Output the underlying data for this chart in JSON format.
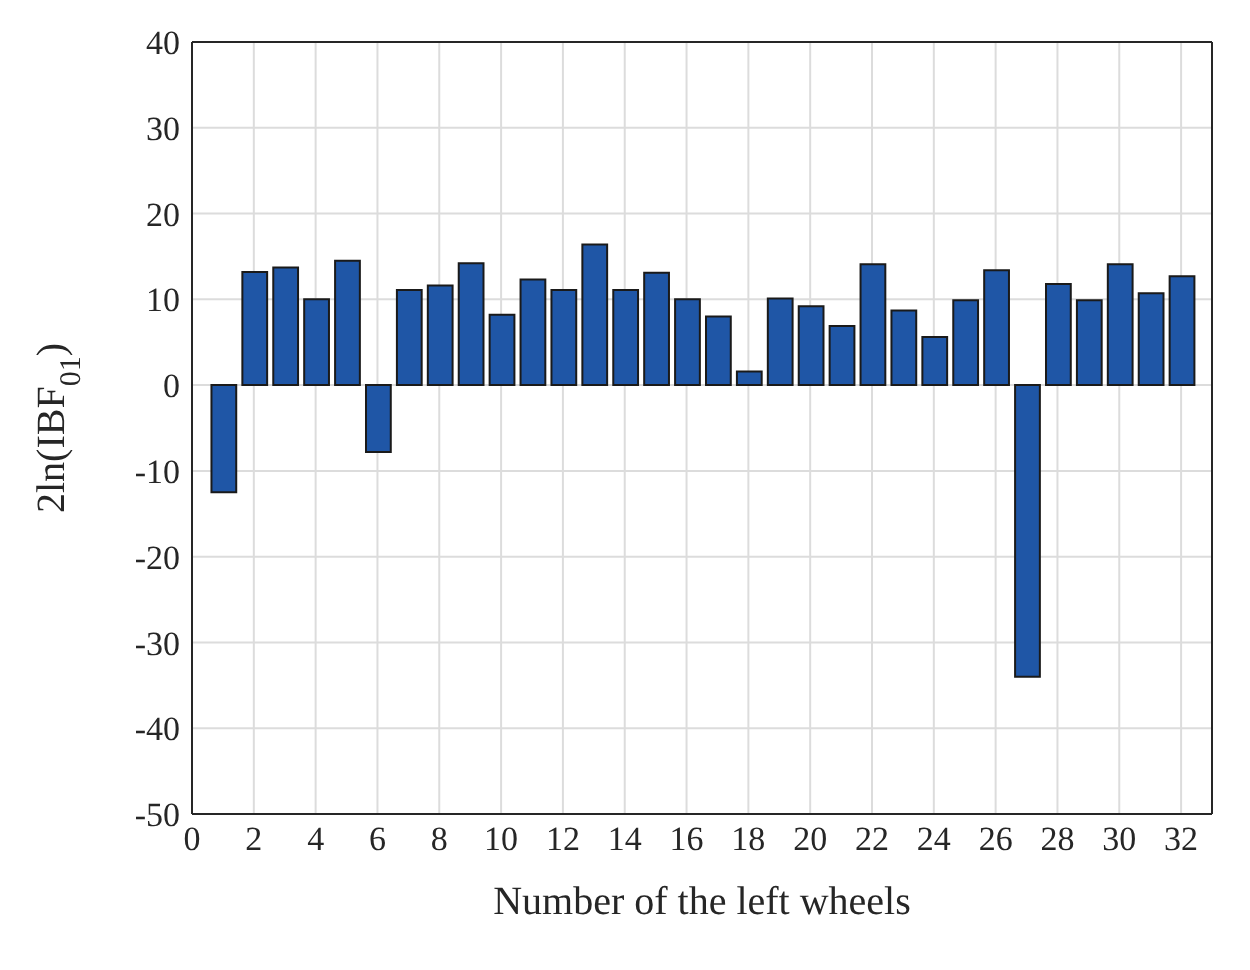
{
  "chart_data": {
    "type": "bar",
    "xlabel": "Number of the left wheels",
    "ylabel": "2ln(IBF$_{01}$)",
    "x": [
      1,
      2,
      3,
      4,
      5,
      6,
      7,
      8,
      9,
      10,
      11,
      12,
      13,
      14,
      15,
      16,
      17,
      18,
      19,
      20,
      21,
      22,
      23,
      24,
      25,
      26,
      27,
      28,
      29,
      30,
      31,
      32
    ],
    "values": [
      -12.5,
      13.2,
      13.7,
      10,
      14.5,
      -7.8,
      11.1,
      11.6,
      14.2,
      8.2,
      12.3,
      11.1,
      16.4,
      11.1,
      13.1,
      10,
      8,
      1.6,
      10.1,
      9.2,
      6.9,
      14.1,
      8.7,
      5.6,
      9.9,
      13.4,
      -34,
      11.8,
      9.9,
      14.1,
      10.7,
      12.7
    ],
    "color": "#1f56a6",
    "xlim": [
      0,
      33
    ],
    "xticks": [
      0,
      2,
      4,
      6,
      8,
      10,
      12,
      14,
      16,
      18,
      20,
      22,
      24,
      26,
      28,
      30,
      32
    ],
    "ylim": [
      -50,
      40
    ],
    "yticks": [
      -50,
      -40,
      -30,
      -20,
      -10,
      0,
      10,
      20,
      30,
      40
    ],
    "grid": true
  }
}
